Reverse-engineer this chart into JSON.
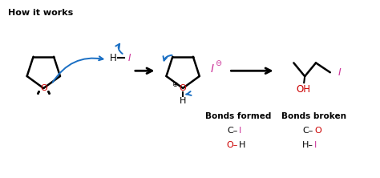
{
  "title": "How it works",
  "bg_color": "#ffffff",
  "text_color": "#000000",
  "blue_color": "#1a6fc4",
  "red_color": "#cc0000",
  "pink_color": "#cc3399",
  "bonds_formed_header": "Bonds formed",
  "bonds_broken_header": "Bonds broken"
}
